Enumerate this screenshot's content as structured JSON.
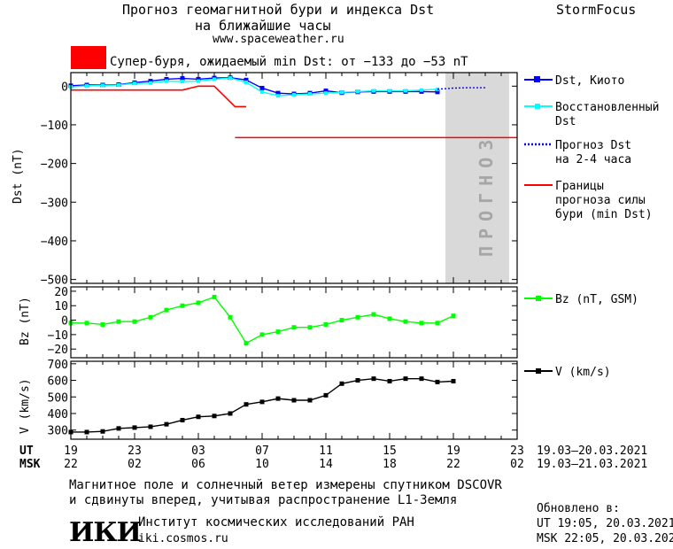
{
  "header": {
    "title_line1": "Прогноз геомагнитной бури и индекса Dst",
    "title_line2": "на ближайшие часы",
    "url": "www.spaceweather.ru",
    "brand": "StormFocus",
    "alert_color": "#ff0000",
    "alert_text": "Супер-буря, ожидаемый min Dst: от −133 до −53 nT"
  },
  "legend": {
    "dst_kyoto": "Dst, Киото",
    "dst_restored_1": "Восстановленный",
    "dst_restored_2": "Dst",
    "forecast_1": "Прогноз Dst",
    "forecast_2": "на 2-4 часа",
    "bounds_1": "Границы",
    "bounds_2": "прогноза силы",
    "bounds_3": "бури (min Dst)",
    "bz": "Bz (nT, GSM)",
    "v": "V (km/s)"
  },
  "forecast_band_label": "ПРОГНОЗ",
  "axes": {
    "dst_ylabel": "Dst (nT)",
    "bz_ylabel": "Bz (nT)",
    "v_ylabel": "V (km/s)",
    "ut_label": "UT",
    "msk_label": "MSK",
    "ut_ticks": [
      "19",
      "23",
      "03",
      "07",
      "11",
      "15",
      "19",
      "23"
    ],
    "msk_ticks": [
      "22",
      "02",
      "06",
      "10",
      "14",
      "18",
      "22",
      "02"
    ],
    "ut_range": "19.03–20.03.2021",
    "msk_range": "19.03–21.03.2021"
  },
  "chart_data": [
    {
      "type": "line",
      "panel": "Dst",
      "ylabel": "Dst (nT)",
      "ylim": [
        -510,
        35
      ],
      "yticks": [
        0,
        -100,
        -200,
        -300,
        -400,
        -500
      ],
      "x_unit": "hours from 19 UT 19.03.2021",
      "xlim": [
        0,
        28
      ],
      "forecast_band": [
        23.5,
        27.5
      ],
      "series": [
        {
          "name": "Dst, Киото",
          "color": "#0000ff",
          "x": [
            0,
            1,
            2,
            3,
            4,
            5,
            6,
            7,
            8,
            9,
            10,
            11,
            12,
            13,
            14,
            15,
            16,
            17,
            18,
            19,
            20,
            21,
            22,
            23
          ],
          "y": [
            1,
            3,
            3,
            4,
            9,
            13,
            18,
            20,
            18,
            21,
            22,
            16,
            -5,
            -18,
            -20,
            -18,
            -12,
            -17,
            -15,
            -14,
            -14,
            -14,
            -14,
            -15
          ]
        },
        {
          "name": "Восстановленный Dst",
          "color": "#00ffff",
          "x": [
            0,
            1,
            2,
            3,
            4,
            5,
            6,
            7,
            8,
            9,
            10,
            11,
            12,
            13,
            14,
            15,
            16,
            17,
            18,
            19,
            20,
            21,
            22,
            23
          ],
          "y": [
            -2,
            1,
            2,
            3,
            7,
            8,
            13,
            12,
            13,
            18,
            21,
            10,
            -15,
            -25,
            -22,
            -20,
            -18,
            -16,
            -14,
            -12,
            -12,
            -12,
            -10,
            -8
          ]
        },
        {
          "name": "Прогноз Dst на 2-4 часа",
          "color": "#0000ff",
          "x": [
            23,
            24,
            25,
            26
          ],
          "y": [
            -8,
            -5,
            -4,
            -4
          ]
        },
        {
          "name": "Границы прогноза силы бури (min Dst)",
          "color": "#ff0000",
          "x": [
            0,
            7,
            8,
            9,
            10.3,
            11
          ],
          "y": [
            -10,
            -10,
            0,
            0,
            -53,
            -53
          ]
        },
        {
          "name": "Границы прогноза силы бури (min Dst)",
          "color": "#ff0000",
          "x": [
            10.3,
            28
          ],
          "y": [
            -133,
            -133
          ]
        }
      ]
    },
    {
      "type": "line",
      "panel": "Bz",
      "ylabel": "Bz (nT)",
      "ylim": [
        -26,
        23
      ],
      "yticks": [
        20,
        10,
        0,
        -10,
        -20
      ],
      "xlim": [
        0,
        28
      ],
      "series": [
        {
          "name": "Bz (nT, GSM)",
          "color": "#00ff00",
          "x": [
            0,
            1,
            2,
            3,
            4,
            5,
            6,
            7,
            8,
            9,
            10,
            11,
            12,
            13,
            14,
            15,
            16,
            17,
            18,
            19,
            20,
            21,
            22,
            23,
            24
          ],
          "y": [
            -2,
            -2,
            -3,
            -1,
            -1,
            2,
            7,
            10,
            12,
            16,
            2,
            -16,
            -10,
            -8,
            -5,
            -5,
            -3,
            0,
            2,
            4,
            1,
            -1,
            -2,
            -2,
            3
          ]
        }
      ]
    },
    {
      "type": "line",
      "panel": "V",
      "ylabel": "V (km/s)",
      "ylim": [
        245,
        715
      ],
      "yticks": [
        700,
        600,
        500,
        400,
        300
      ],
      "xlim": [
        0,
        28
      ],
      "series": [
        {
          "name": "V (km/s)",
          "color": "#000000",
          "x": [
            0,
            1,
            2,
            3,
            4,
            5,
            6,
            7,
            8,
            9,
            10,
            11,
            12,
            13,
            14,
            15,
            16,
            17,
            18,
            19,
            20,
            21,
            22,
            23,
            24
          ],
          "y": [
            288,
            288,
            292,
            310,
            315,
            320,
            335,
            360,
            380,
            385,
            400,
            455,
            470,
            490,
            480,
            480,
            510,
            580,
            600,
            610,
            595,
            610,
            610,
            590,
            595
          ]
        }
      ]
    }
  ],
  "footer": {
    "line1": "Магнитное поле и солнечный ветер измерены спутником DSCOVR",
    "line2": "и сдвинуты вперед, учитывая распространение L1-Земля",
    "updated": "Обновлено в:",
    "updated_ut": "UT  19:05, 20.03.2021",
    "updated_msk": "MSK 22:05, 20.03.2021",
    "logo": "ИКИ",
    "institute": "Институт космических исследований РАН",
    "site": "iki.cosmos.ru"
  }
}
